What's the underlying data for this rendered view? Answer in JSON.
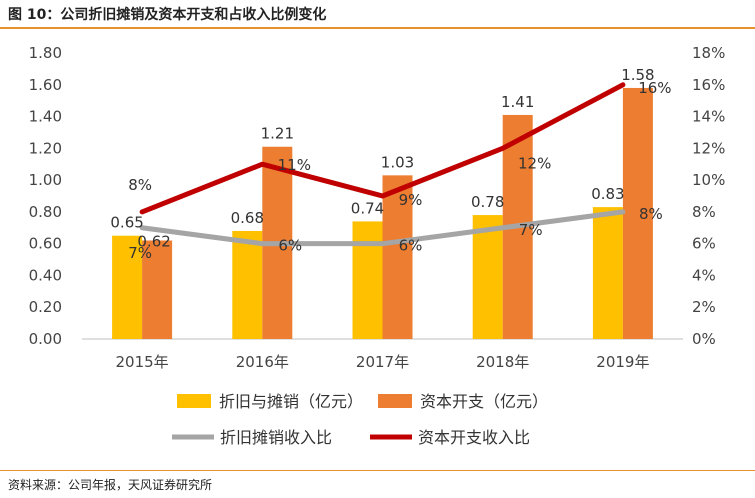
{
  "figure": {
    "title": "图 10：公司折旧摊销及资本开支和占收入比例变化",
    "source": "资料来源：公司年报，天风证券研究所"
  },
  "colors": {
    "bar1": "#ffc000",
    "bar2": "#ed7d31",
    "line1": "#a5a5a5",
    "line2": "#c00000",
    "accent_rule": "#e8902e"
  },
  "chart_data": {
    "type": "bar",
    "categories": [
      "2015年",
      "2016年",
      "2017年",
      "2018年",
      "2019年"
    ],
    "series": [
      {
        "name": "折旧与摊销（亿元）",
        "type": "bar",
        "axis": "left",
        "values": [
          0.65,
          0.68,
          0.74,
          0.78,
          0.83
        ],
        "labels": [
          "0.65",
          "0.68",
          "0.74",
          "0.78",
          "0.83"
        ]
      },
      {
        "name": "资本开支（亿元）",
        "type": "bar",
        "axis": "left",
        "values": [
          0.62,
          1.21,
          1.03,
          1.41,
          1.58
        ],
        "labels": [
          "0.62",
          "1.21",
          "1.03",
          "1.41",
          "1.58"
        ]
      },
      {
        "name": "折旧摊销收入比",
        "type": "line",
        "axis": "right",
        "values": [
          7,
          6,
          6,
          7,
          8
        ],
        "labels": [
          "7%",
          "6%",
          "6%",
          "7%",
          "8%"
        ]
      },
      {
        "name": "资本开支收入比",
        "type": "line",
        "axis": "right",
        "values": [
          8,
          11,
          9,
          12,
          16
        ],
        "labels": [
          "8%",
          "11%",
          "9%",
          "12%",
          "16%"
        ]
      }
    ],
    "y_left": {
      "ylim": [
        0,
        1.8
      ],
      "ticks": [
        "0.00",
        "0.20",
        "0.40",
        "0.60",
        "0.80",
        "1.00",
        "1.20",
        "1.40",
        "1.60",
        "1.80"
      ]
    },
    "y_right": {
      "ylim": [
        0,
        18
      ],
      "ticks": [
        "0%",
        "2%",
        "4%",
        "6%",
        "8%",
        "10%",
        "12%",
        "14%",
        "16%",
        "18%"
      ]
    },
    "grid": false,
    "legend_position": "bottom"
  }
}
